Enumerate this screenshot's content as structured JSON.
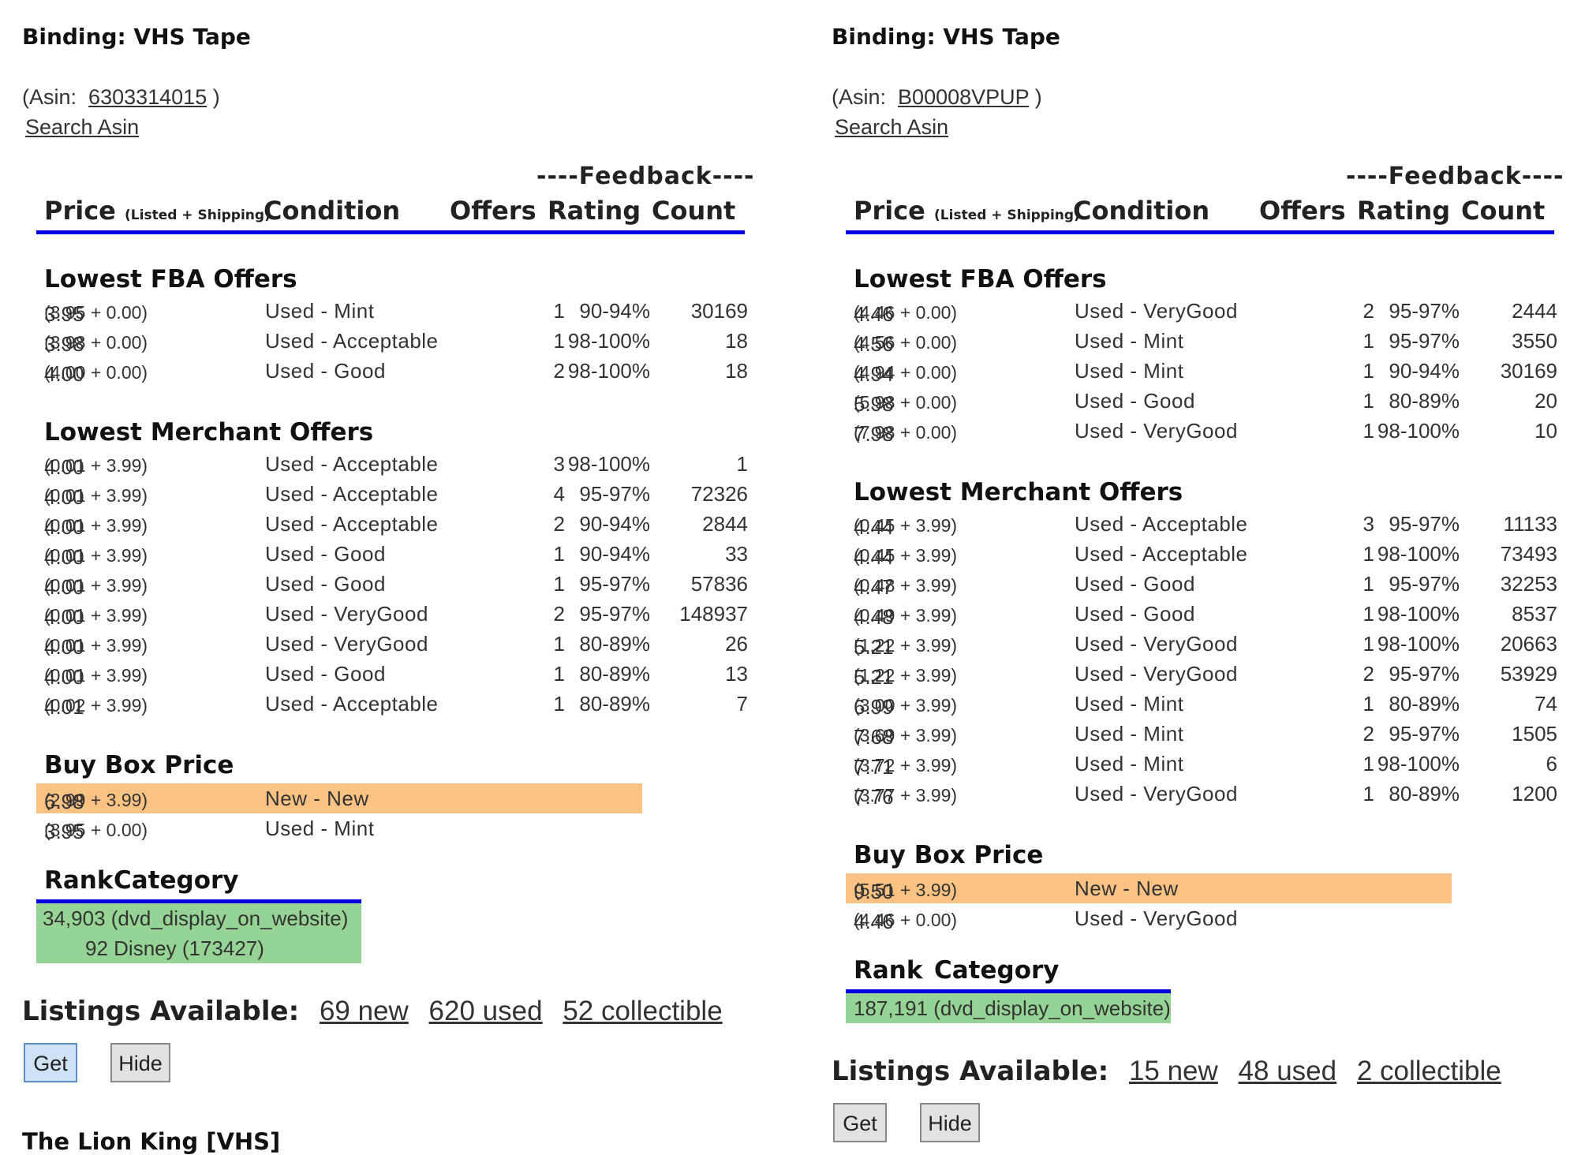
{
  "left": {
    "binding": "Binding: VHS Tape",
    "asin_prefix": "(Asin:",
    "asin": "6303314015",
    "asin_suffix": ")",
    "search_asin": "Search Asin",
    "feedback_caption": "----Feedback----",
    "headers": {
      "price": "Price",
      "price_note": "(Listed + Shipping)",
      "condition": "Condition",
      "offers": "Offers",
      "rating": "Rating",
      "count": "Count"
    },
    "fba_title": "Lowest FBA Offers",
    "fba": [
      {
        "price": "3.95",
        "detail": "(3.95 + 0.00)",
        "condition": "Used - Mint",
        "offers": "1",
        "rating": "90-94%",
        "count": "30169"
      },
      {
        "price": "3.98",
        "detail": "(3.98 + 0.00)",
        "condition": "Used - Acceptable",
        "offers": "1",
        "rating": "98-100%",
        "count": "18"
      },
      {
        "price": "4.00",
        "detail": "(4.00 + 0.00)",
        "condition": "Used - Good",
        "offers": "2",
        "rating": "98-100%",
        "count": "18"
      }
    ],
    "merchant_title": "Lowest Merchant Offers",
    "merchant": [
      {
        "price": "4.00",
        "detail": "(0.01 + 3.99)",
        "condition": "Used - Acceptable",
        "offers": "3",
        "rating": "98-100%",
        "count": "1"
      },
      {
        "price": "4.00",
        "detail": "(0.01 + 3.99)",
        "condition": "Used - Acceptable",
        "offers": "4",
        "rating": "95-97%",
        "count": "72326"
      },
      {
        "price": "4.00",
        "detail": "(0.01 + 3.99)",
        "condition": "Used - Acceptable",
        "offers": "2",
        "rating": "90-94%",
        "count": "2844"
      },
      {
        "price": "4.00",
        "detail": "(0.01 + 3.99)",
        "condition": "Used - Good",
        "offers": "1",
        "rating": "90-94%",
        "count": "33"
      },
      {
        "price": "4.00",
        "detail": "(0.01 + 3.99)",
        "condition": "Used - Good",
        "offers": "1",
        "rating": "95-97%",
        "count": "57836"
      },
      {
        "price": "4.00",
        "detail": "(0.01 + 3.99)",
        "condition": "Used - VeryGood",
        "offers": "2",
        "rating": "95-97%",
        "count": "148937"
      },
      {
        "price": "4.00",
        "detail": "(0.01 + 3.99)",
        "condition": "Used - VeryGood",
        "offers": "1",
        "rating": "80-89%",
        "count": "26"
      },
      {
        "price": "4.00",
        "detail": "(0.01 + 3.99)",
        "condition": "Used - Good",
        "offers": "1",
        "rating": "80-89%",
        "count": "13"
      },
      {
        "price": "4.01",
        "detail": "(0.02 + 3.99)",
        "condition": "Used - Acceptable",
        "offers": "1",
        "rating": "80-89%",
        "count": "7"
      }
    ],
    "buybox_title": "Buy Box Price",
    "buybox": [
      {
        "price": "6.98",
        "detail": "(2.99 + 3.99)",
        "condition": "New - New"
      },
      {
        "price": "3.95",
        "detail": "(3.95 + 0.00)",
        "condition": "Used - Mint"
      }
    ],
    "rank_header": {
      "rank": "Rank",
      "category": "Category"
    },
    "ranks": [
      {
        "rank": "34,903",
        "category": "(dvd_display_on_website)"
      },
      {
        "rank": "92",
        "category": "Disney (173427)"
      }
    ],
    "listings": {
      "label": "Listings Available:",
      "new": "69 new",
      "used": "620 used",
      "collectible": "52 collectible"
    },
    "buttons": {
      "get": "Get",
      "hide": "Hide"
    },
    "next_title": "The Lion King [VHS]"
  },
  "right": {
    "binding": "Binding: VHS Tape",
    "asin_prefix": "(Asin:",
    "asin": "B00008VPUP",
    "asin_suffix": ")",
    "search_asin": "Search Asin",
    "feedback_caption": "----Feedback----",
    "headers": {
      "price": "Price",
      "price_note": "(Listed + Shipping)",
      "condition": "Condition",
      "offers": "Offers",
      "rating": "Rating",
      "count": "Count"
    },
    "fba_title": "Lowest FBA Offers",
    "fba": [
      {
        "price": "4.46",
        "detail": "(4.46 + 0.00)",
        "condition": "Used - VeryGood",
        "offers": "2",
        "rating": "95-97%",
        "count": "2444"
      },
      {
        "price": "4.56",
        "detail": "(4.56 + 0.00)",
        "condition": "Used - Mint",
        "offers": "1",
        "rating": "95-97%",
        "count": "3550"
      },
      {
        "price": "4.94",
        "detail": "(4.94 + 0.00)",
        "condition": "Used - Mint",
        "offers": "1",
        "rating": "90-94%",
        "count": "30169"
      },
      {
        "price": "5.98",
        "detail": "(5.98 + 0.00)",
        "condition": "Used - Good",
        "offers": "1",
        "rating": "80-89%",
        "count": "20"
      },
      {
        "price": "7.98",
        "detail": "(7.98 + 0.00)",
        "condition": "Used - VeryGood",
        "offers": "1",
        "rating": "98-100%",
        "count": "10"
      }
    ],
    "merchant_title": "Lowest Merchant Offers",
    "merchant": [
      {
        "price": "4.44",
        "detail": "(0.45 + 3.99)",
        "condition": "Used - Acceptable",
        "offers": "3",
        "rating": "95-97%",
        "count": "11133"
      },
      {
        "price": "4.44",
        "detail": "(0.45 + 3.99)",
        "condition": "Used - Acceptable",
        "offers": "1",
        "rating": "98-100%",
        "count": "73493"
      },
      {
        "price": "4.47",
        "detail": "(0.48 + 3.99)",
        "condition": "Used - Good",
        "offers": "1",
        "rating": "95-97%",
        "count": "32253"
      },
      {
        "price": "4.48",
        "detail": "(0.49 + 3.99)",
        "condition": "Used - Good",
        "offers": "1",
        "rating": "98-100%",
        "count": "8537"
      },
      {
        "price": "5.21",
        "detail": "(1.22 + 3.99)",
        "condition": "Used - VeryGood",
        "offers": "1",
        "rating": "98-100%",
        "count": "20663"
      },
      {
        "price": "5.21",
        "detail": "(1.22 + 3.99)",
        "condition": "Used - VeryGood",
        "offers": "2",
        "rating": "95-97%",
        "count": "53929"
      },
      {
        "price": "6.99",
        "detail": "(3.00 + 3.99)",
        "condition": "Used - Mint",
        "offers": "1",
        "rating": "80-89%",
        "count": "74"
      },
      {
        "price": "7.68",
        "detail": "(3.69 + 3.99)",
        "condition": "Used - Mint",
        "offers": "2",
        "rating": "95-97%",
        "count": "1505"
      },
      {
        "price": "7.71",
        "detail": "(3.72 + 3.99)",
        "condition": "Used - Mint",
        "offers": "1",
        "rating": "98-100%",
        "count": "6"
      },
      {
        "price": "7.76",
        "detail": "(3.77 + 3.99)",
        "condition": "Used - VeryGood",
        "offers": "1",
        "rating": "80-89%",
        "count": "1200"
      }
    ],
    "buybox_title": "Buy Box Price",
    "buybox": [
      {
        "price": "9.50",
        "detail": "(5.51 + 3.99)",
        "condition": "New - New"
      },
      {
        "price": "4.46",
        "detail": "(4.46 + 0.00)",
        "condition": "Used - VeryGood"
      }
    ],
    "rank_header": {
      "rank": "Rank",
      "category": "Category"
    },
    "ranks": [
      {
        "rank": "187,191",
        "category": "(dvd_display_on_website)"
      }
    ],
    "listings": {
      "label": "Listings Available:",
      "new": "15 new",
      "used": "48 used",
      "collectible": "2 collectible"
    },
    "buttons": {
      "get": "Get",
      "hide": "Hide"
    }
  },
  "colors": {
    "header_rule": "#0000e0",
    "buybox_highlight": "#fbc383",
    "rank_box": "#96d496"
  }
}
